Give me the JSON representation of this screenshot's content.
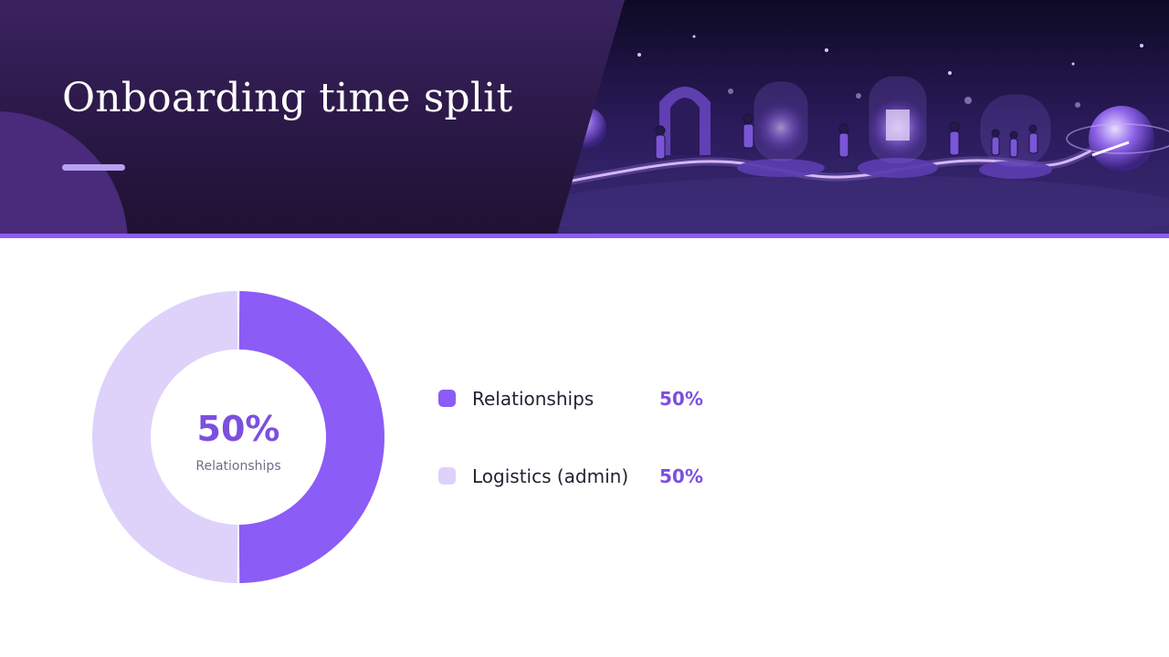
{
  "slide": {
    "title": "Onboarding time split"
  },
  "colors": {
    "accent": "#8b5cf6",
    "accent_light": "#ded2fb",
    "header_dark": "#2a1846"
  },
  "chart_data": {
    "type": "pie",
    "variant": "donut",
    "categories": [
      "Relationships",
      "Logistics (admin)"
    ],
    "values": [
      50,
      50
    ],
    "value_labels": [
      "50%",
      "50%"
    ],
    "colors": [
      "#8b5cf6",
      "#ded2fb"
    ],
    "center_value": "50%",
    "center_label": "Relationships",
    "legend_placement": "right"
  }
}
